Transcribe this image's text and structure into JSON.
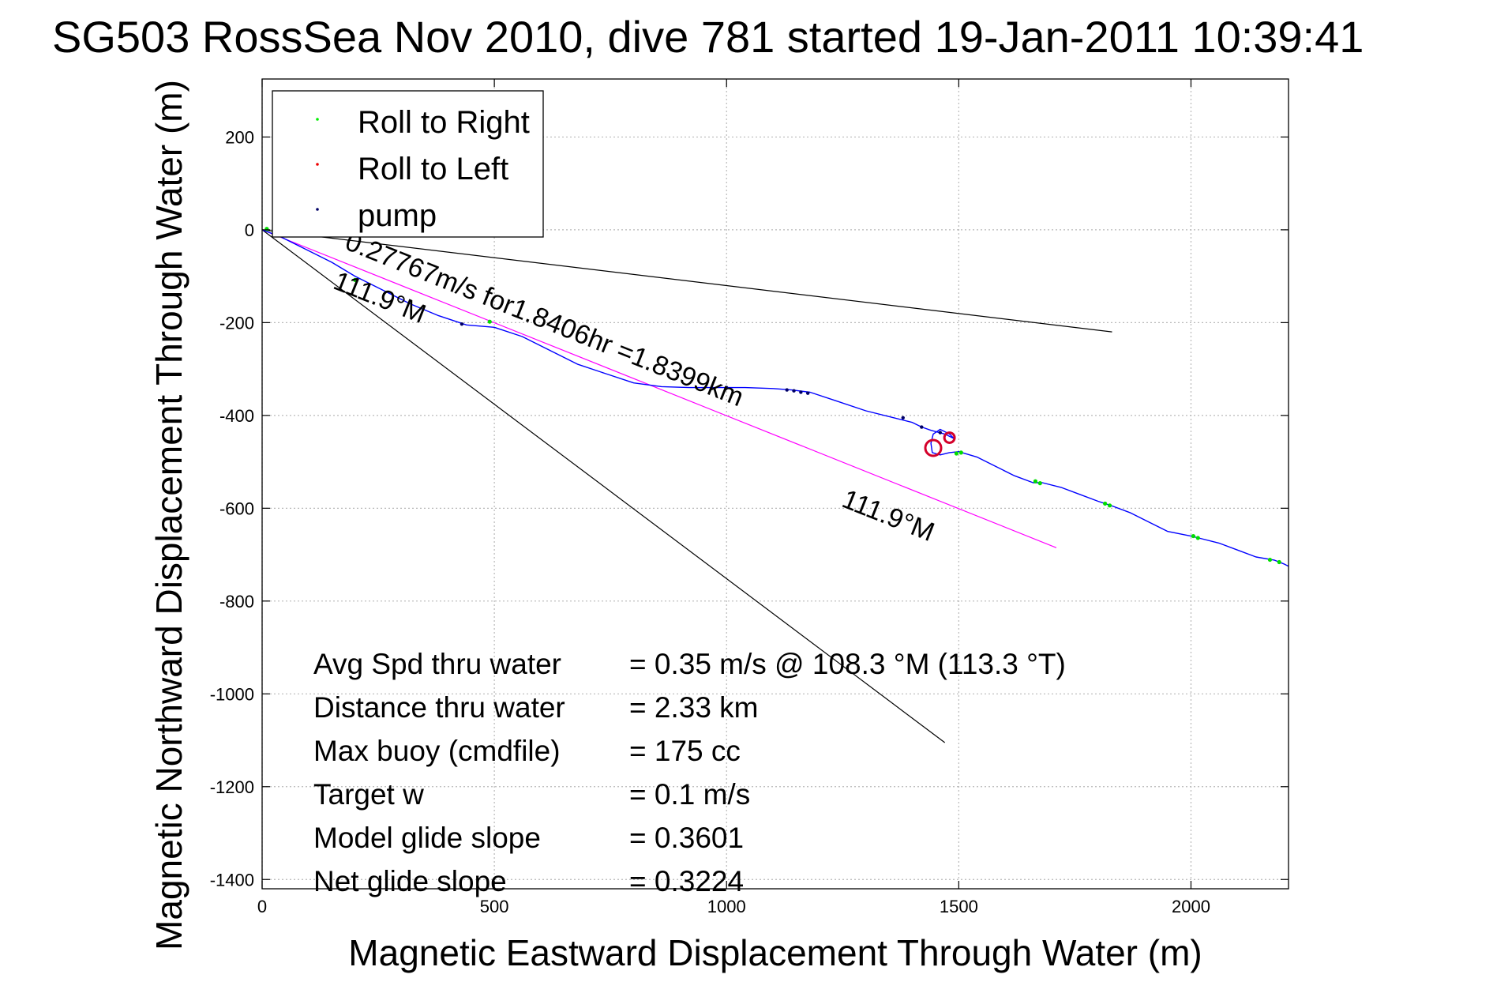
{
  "chart_data": {
    "type": "line",
    "title": "SG503 RossSea Nov 2010, dive 781 started 19-Jan-2011 10:39:41",
    "xlabel": "Magnetic Eastward Displacement Through Water (m)",
    "ylabel": "Magnetic Northward Displacement Through Water (m)",
    "xlim": [
      0,
      2210
    ],
    "ylim": [
      -1420,
      325
    ],
    "xticks": [
      0,
      500,
      1000,
      1500,
      2000
    ],
    "yticks": [
      200,
      0,
      -200,
      -400,
      -600,
      -800,
      -1000,
      -1200,
      -1400
    ],
    "grid": true,
    "legend_position": "top-left",
    "legend": [
      {
        "label": "Roll to Right",
        "color": "#00ee00"
      },
      {
        "label": "Roll to Left",
        "color": "#ee0000"
      },
      {
        "label": "pump",
        "color": "#000066"
      }
    ],
    "series": [
      {
        "role": "track",
        "color": "#0000ff",
        "x": [
          0,
          40,
          90,
          150,
          200,
          260,
          320,
          380,
          440,
          500,
          560,
          620,
          680,
          740,
          800,
          860,
          920,
          980,
          1040,
          1100,
          1140,
          1180,
          1240,
          1300,
          1360,
          1400,
          1420,
          1440,
          1470,
          1490,
          1480,
          1460,
          1445,
          1440,
          1443,
          1460,
          1480,
          1500,
          1540,
          1580,
          1620,
          1660,
          1680,
          1720,
          1760,
          1800,
          1830,
          1870,
          1910,
          1950,
          2000,
          2020,
          2060,
          2100,
          2140,
          2180,
          2200,
          2210
        ],
        "y": [
          0,
          -15,
          -40,
          -70,
          -100,
          -130,
          -160,
          -185,
          -205,
          -210,
          -230,
          -260,
          -290,
          -310,
          -330,
          -338,
          -340,
          -340,
          -340,
          -342,
          -345,
          -350,
          -370,
          -390,
          -405,
          -415,
          -425,
          -432,
          -440,
          -450,
          -440,
          -430,
          -440,
          -460,
          -480,
          -485,
          -480,
          -478,
          -490,
          -510,
          -530,
          -545,
          -545,
          -555,
          -570,
          -585,
          -595,
          -610,
          -630,
          -650,
          -660,
          -665,
          -675,
          -690,
          -705,
          -712,
          -720,
          -725
        ]
      },
      {
        "role": "heading-line",
        "color": "#ff00ff",
        "x": [
          0,
          1710
        ],
        "y": [
          0,
          -685
        ]
      },
      {
        "role": "reference-line",
        "color": "#000000",
        "x": [
          0,
          1830
        ],
        "y": [
          0,
          -220
        ]
      },
      {
        "role": "reference-line",
        "color": "#000000",
        "x": [
          0,
          1470
        ],
        "y": [
          0,
          -1105
        ]
      }
    ],
    "markers": {
      "roll_right": [
        [
          10,
          2
        ],
        [
          25,
          -2
        ],
        [
          200,
          -108
        ],
        [
          490,
          -198
        ],
        [
          1495,
          -482
        ],
        [
          1505,
          -480
        ],
        [
          1665,
          -542
        ],
        [
          1675,
          -546
        ],
        [
          1815,
          -590
        ],
        [
          1825,
          -594
        ],
        [
          2005,
          -660
        ],
        [
          2015,
          -664
        ],
        [
          2170,
          -711
        ],
        [
          2190,
          -716
        ]
      ],
      "roll_left_loops": [
        {
          "cx": 1445,
          "cy": -470,
          "r": 17
        },
        {
          "cx": 1480,
          "cy": -448,
          "r": 11
        }
      ],
      "pump": [
        [
          430,
          -203
        ],
        [
          1000,
          -340
        ],
        [
          1130,
          -345
        ],
        [
          1145,
          -347
        ],
        [
          1160,
          -350
        ],
        [
          1175,
          -352
        ],
        [
          1380,
          -405
        ],
        [
          1420,
          -425
        ],
        [
          1460,
          -437
        ]
      ]
    },
    "annotations": [
      {
        "text": "0.27767m/s for1.8406hr =1.8399km",
        "x": 175,
        "y": -40,
        "angle": 21.8
      },
      {
        "text": "111.9°M",
        "x": 150,
        "y": -125,
        "angle": 21.8
      },
      {
        "text": "111.9°M",
        "x": 1245,
        "y": -595,
        "angle": 21.8
      }
    ],
    "stats": [
      {
        "label": "Avg Spd thru water",
        "value": "=  0.35 m/s @ 108.3 °M (113.3 °T)"
      },
      {
        "label": "Distance thru water",
        "value": "=  2.33 km"
      },
      {
        "label": "Max buoy (cmdfile)",
        "value": "= 175 cc"
      },
      {
        "label": "Target w",
        "value": "= 0.1 m/s"
      },
      {
        "label": "Model glide slope",
        "value": "= 0.3601"
      },
      {
        "label": "Net glide slope",
        "value": "= 0.3224"
      }
    ]
  }
}
